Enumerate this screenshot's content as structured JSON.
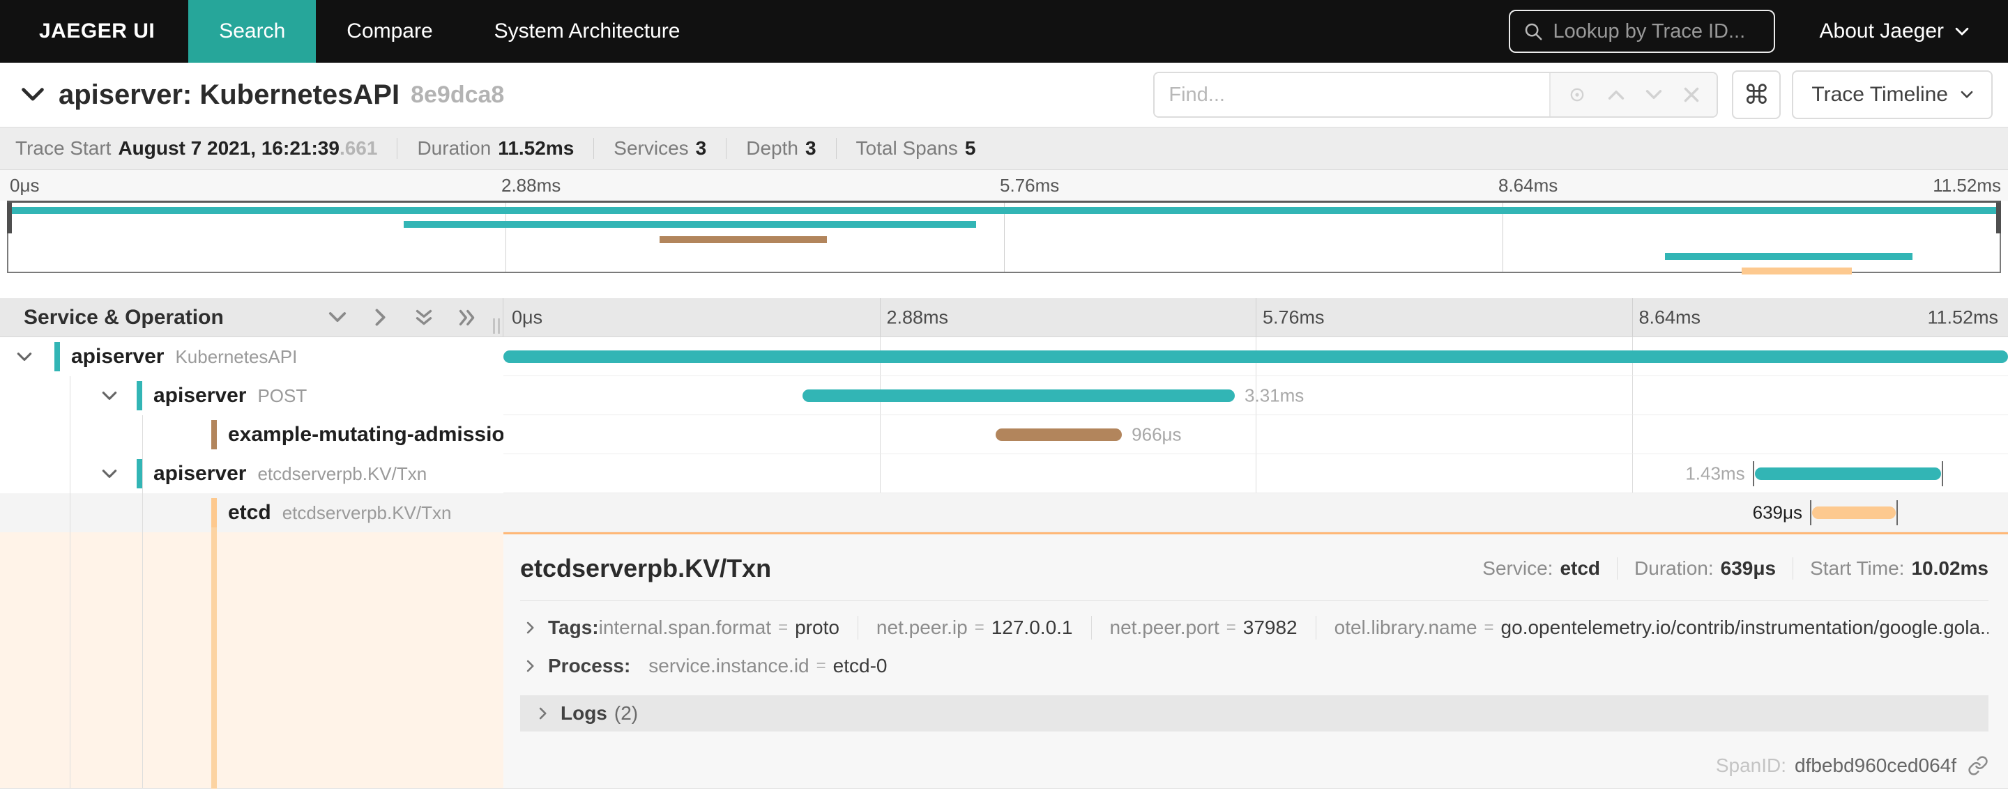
{
  "colors": {
    "teal": "#32b5b5",
    "brown": "#b2855c",
    "orange": "#fdc98f",
    "orange_cont": "#fcd3a2",
    "orange_border": "#ffb877",
    "nav_active": "#26a69a"
  },
  "nav": {
    "brand": "JAEGER UI",
    "items": [
      {
        "label": "Search"
      },
      {
        "label": "Compare"
      },
      {
        "label": "System Architecture"
      }
    ],
    "lookup_placeholder": "Lookup by Trace ID...",
    "about_label": "About Jaeger"
  },
  "trace_header": {
    "title": "apiserver: KubernetesAPI",
    "trace_id": "8e9dca8",
    "find_placeholder": "Find...",
    "cmd_symbol": "⌘",
    "view_selector": "Trace Timeline"
  },
  "summary": {
    "trace_start_label": "Trace Start",
    "trace_start": "August 7 2021, 16:21:39",
    "trace_start_frac": ".661",
    "duration_label": "Duration",
    "duration": "11.52ms",
    "services_label": "Services",
    "services": "3",
    "depth_label": "Depth",
    "depth": "3",
    "total_spans_label": "Total Spans",
    "total_spans": "5"
  },
  "timeline": {
    "left_header": "Service & Operation",
    "ticks": [
      "0μs",
      "2.88ms",
      "5.76ms",
      "8.64ms",
      "11.52ms"
    ],
    "total_ms": 11.52,
    "spans": [
      {
        "service": "apiserver",
        "operation": "KubernetesAPI",
        "color": "teal",
        "start_ms": 0,
        "duration_ms": 11.52,
        "label": ""
      },
      {
        "service": "apiserver",
        "operation": "POST",
        "color": "teal",
        "start_ms": 2.29,
        "duration_ms": 3.31,
        "label": "3.31ms"
      },
      {
        "service": "example-mutating-admission-webhook...",
        "operation": "",
        "color": "brown",
        "start_ms": 3.77,
        "duration_ms": 0.966,
        "label": "966μs"
      },
      {
        "service": "apiserver",
        "operation": "etcdserverpb.KV/Txn",
        "color": "teal",
        "start_ms": 9.58,
        "duration_ms": 1.43,
        "label": "1.43ms"
      },
      {
        "service": "etcd",
        "operation": "etcdserverpb.KV/Txn",
        "color": "orange",
        "start_ms": 10.02,
        "duration_ms": 0.639,
        "label": "639μs"
      }
    ]
  },
  "detail": {
    "title": "etcdserverpb.KV/Txn",
    "service_label": "Service:",
    "service": "etcd",
    "duration_label": "Duration:",
    "duration": "639μs",
    "start_label": "Start Time:",
    "start": "10.02ms",
    "tags_label": "Tags:",
    "tags": [
      {
        "key": "internal.span.format",
        "value": "proto"
      },
      {
        "key": "net.peer.ip",
        "value": "127.0.0.1"
      },
      {
        "key": "net.peer.port",
        "value": "37982"
      },
      {
        "key": "otel.library.name",
        "value": "go.opentelemetry.io/contrib/instrumentation/google.gola..."
      }
    ],
    "process_label": "Process:",
    "process_key": "service.instance.id",
    "process_value": "etcd-0",
    "logs_label": "Logs",
    "logs_count": "(2)",
    "span_id_label": "SpanID:",
    "span_id": "dfbebd960ced064f"
  }
}
